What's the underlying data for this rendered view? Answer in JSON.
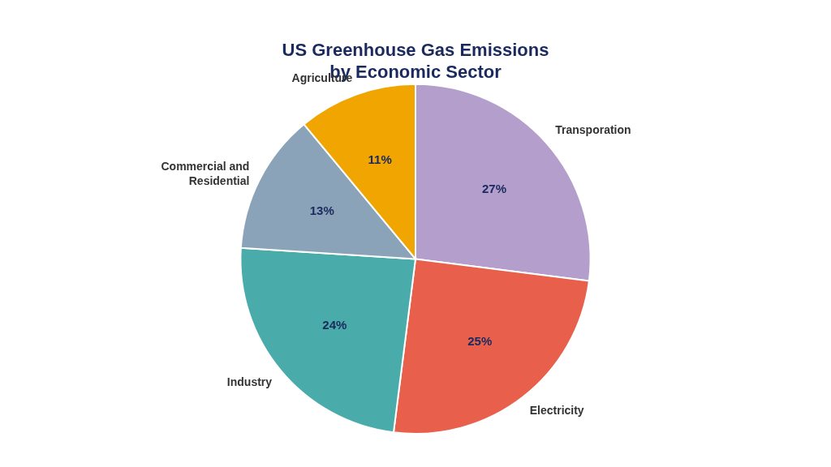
{
  "chart_data": {
    "type": "pie",
    "title": "US Greenhouse Gas Emissions\nby Economic Sector",
    "categories": [
      "Transporation",
      "Electricity",
      "Industry",
      "Commercial and\nResidential",
      "Agriculture"
    ],
    "values": [
      27,
      25,
      24,
      13,
      11
    ],
    "value_labels": [
      "27%",
      "25%",
      "24%",
      "13%",
      "11%"
    ],
    "colors": [
      "#b49fcc",
      "#e8604c",
      "#4aacaa",
      "#8aa3b8",
      "#f0a500"
    ],
    "data_labels": true
  }
}
